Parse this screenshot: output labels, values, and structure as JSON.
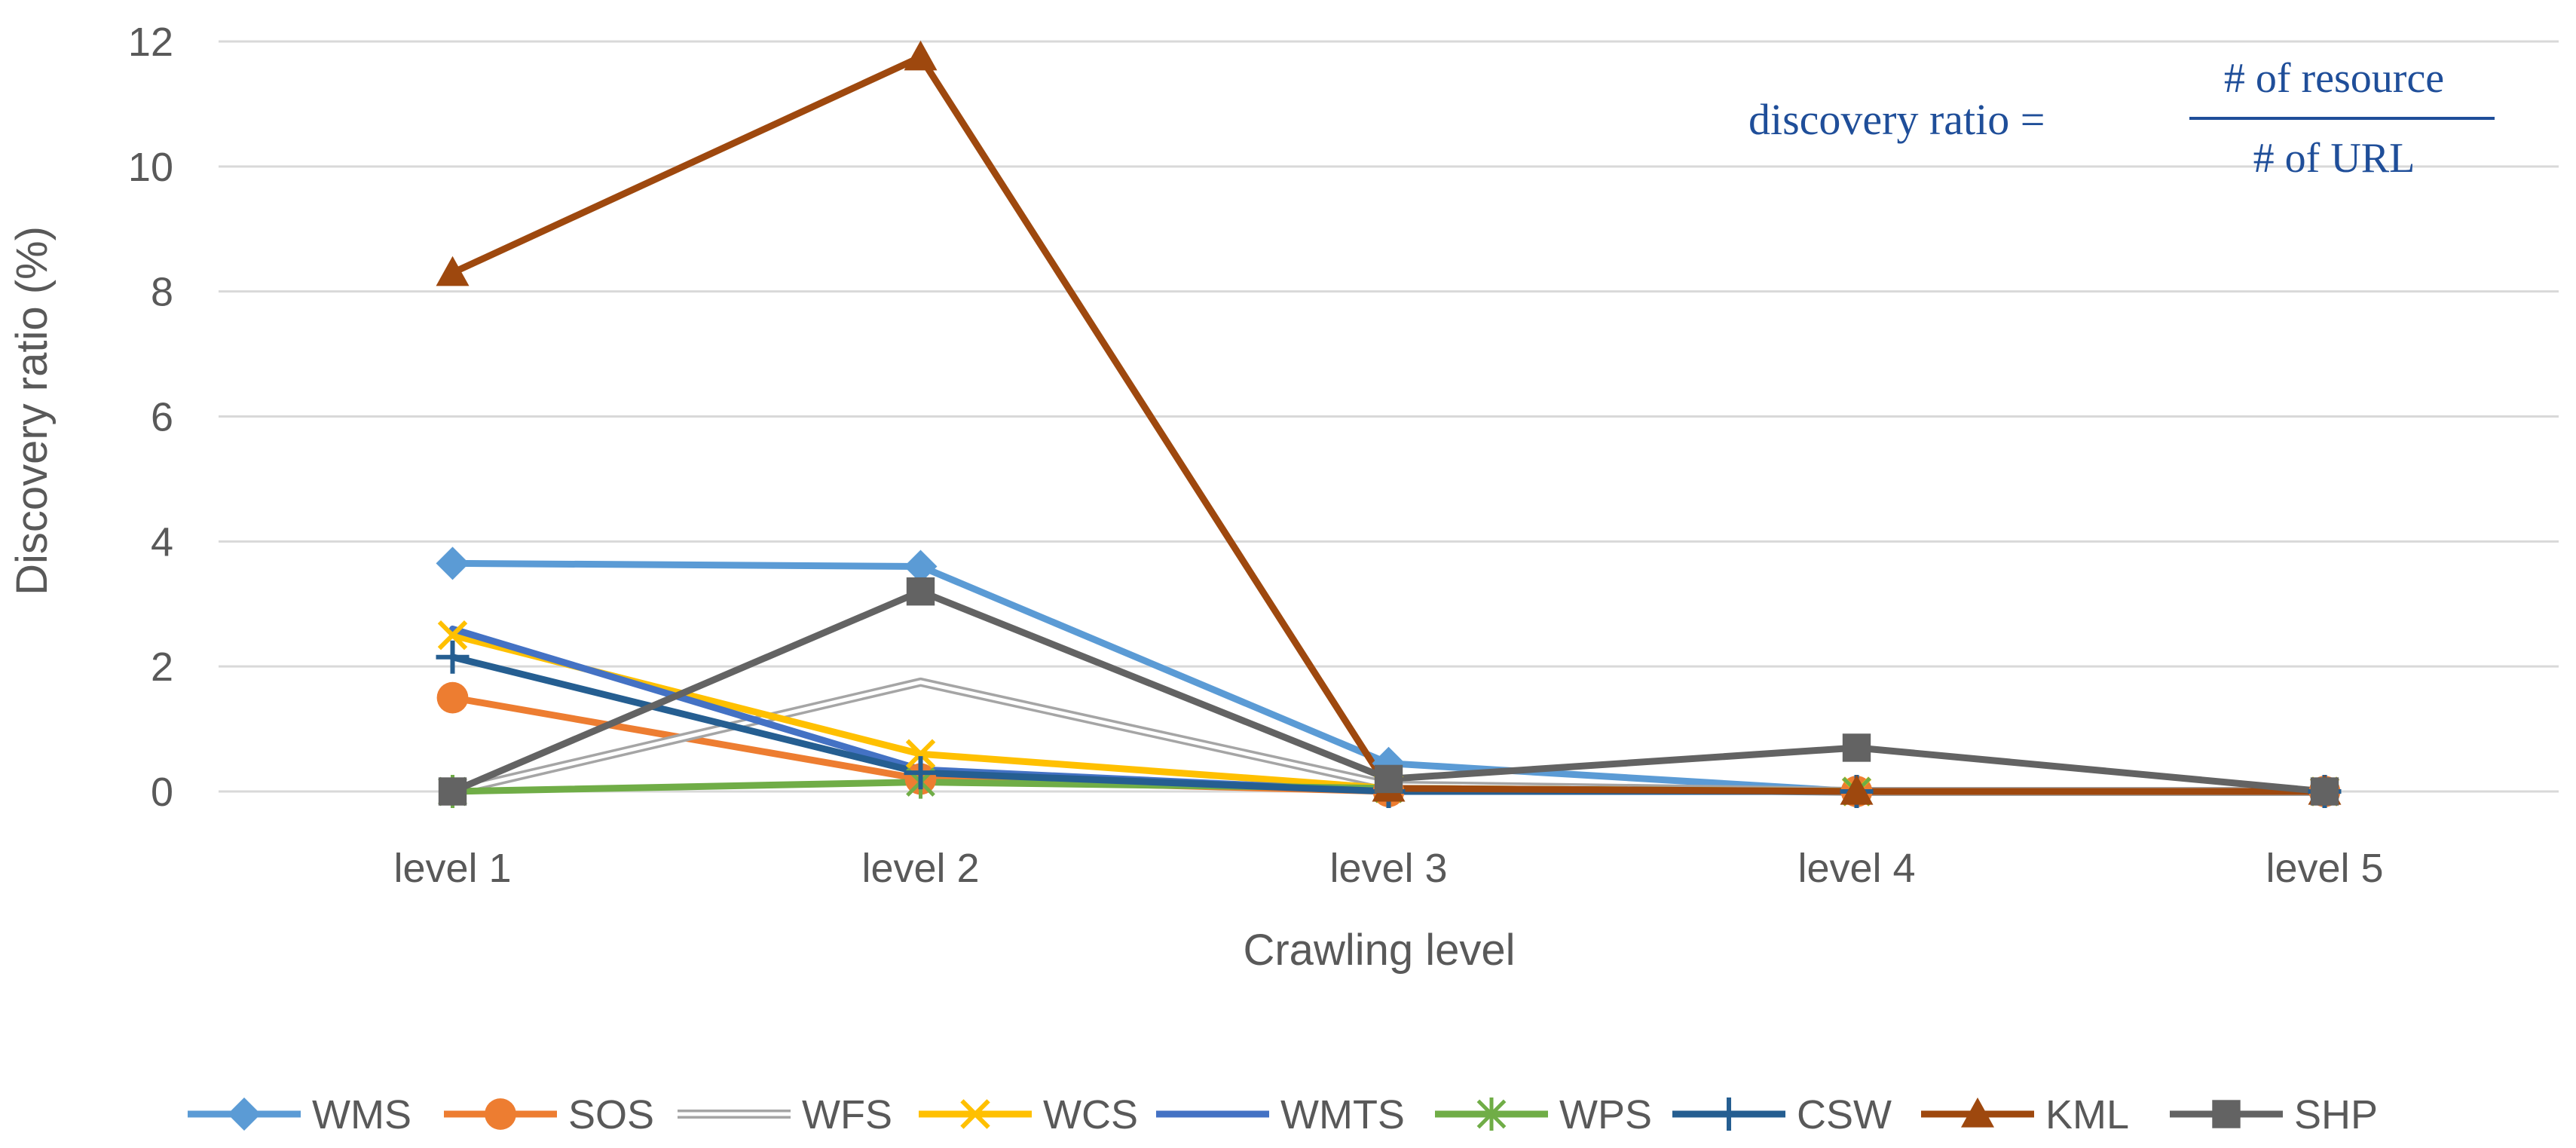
{
  "chart_data": {
    "type": "line",
    "title": "",
    "xlabel": "Crawling level",
    "ylabel": "Discovery ratio (%)",
    "ylim": [
      0,
      12
    ],
    "yticks": [
      0,
      2,
      4,
      6,
      8,
      10,
      12
    ],
    "grid": "horizontal",
    "legend_position": "bottom",
    "categories": [
      "level 1",
      "level 2",
      "level 3",
      "level 4",
      "level 5"
    ],
    "series": [
      {
        "name": "WMS",
        "color": "#5b9bd5",
        "marker": "diamond",
        "values": [
          3.65,
          3.6,
          0.45,
          0.0,
          0.0
        ]
      },
      {
        "name": "SOS",
        "color": "#ed7d31",
        "marker": "circle",
        "values": [
          1.5,
          0.2,
          0.0,
          0.0,
          0.0
        ]
      },
      {
        "name": "WFS",
        "color": "#a5a5a5",
        "marker": "none",
        "style": "double",
        "values": [
          0.0,
          1.75,
          0.1,
          0.0,
          0.0
        ]
      },
      {
        "name": "WCS",
        "color": "#ffc000",
        "marker": "x",
        "values": [
          2.5,
          0.6,
          0.05,
          0.0,
          0.0
        ]
      },
      {
        "name": "WMTS",
        "color": "#4472c4",
        "marker": "none",
        "values": [
          2.6,
          0.35,
          0.0,
          0.0,
          0.0
        ]
      },
      {
        "name": "WPS",
        "color": "#70ad47",
        "marker": "asterisk",
        "values": [
          0.0,
          0.15,
          0.05,
          0.0,
          0.0
        ]
      },
      {
        "name": "CSW",
        "color": "#255e91",
        "marker": "plus",
        "values": [
          2.15,
          0.3,
          0.0,
          0.0,
          0.0
        ]
      },
      {
        "name": "KML",
        "color": "#9e480e",
        "marker": "triangle",
        "values": [
          8.3,
          11.75,
          0.05,
          0.0,
          0.0
        ]
      },
      {
        "name": "SHP",
        "color": "#636363",
        "marker": "square",
        "values": [
          0.0,
          3.2,
          0.2,
          0.7,
          0.0
        ]
      }
    ],
    "annotation": {
      "lhs": "discovery ratio =",
      "numerator": "# of resource",
      "denominator": "# of URL"
    }
  }
}
